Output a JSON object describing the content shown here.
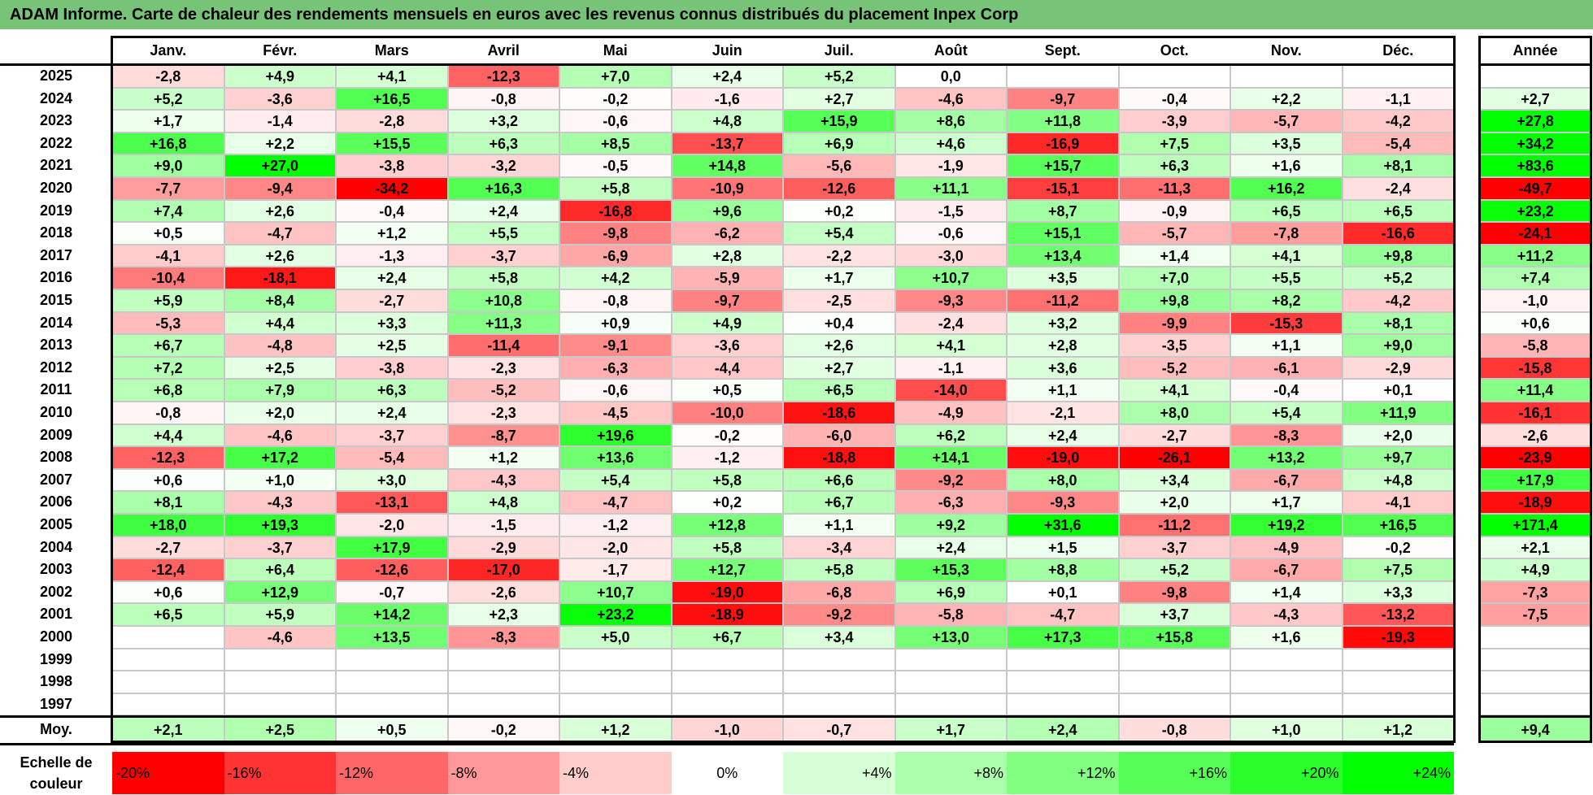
{
  "title": "ADAM Informe. Carte de chaleur des rendements mensuels en euros avec les revenus connus distribués du placement Inpex Corp",
  "months": [
    "Janv.",
    "Févr.",
    "Mars",
    "Avril",
    "Mai",
    "Juin",
    "Juil.",
    "Août",
    "Sept.",
    "Oct.",
    "Nov.",
    "Déc."
  ],
  "year_header": "Année",
  "avg_label": "Moy.",
  "scale_label": "Echelle de couleur",
  "colors": {
    "red": "#ff0000",
    "green": "#00ff00",
    "white": "#ffffff"
  },
  "chart_data": {
    "type": "heatmap",
    "title": "ADAM Informe. Carte de chaleur des rendements mensuels en euros avec les revenus connus distribués du placement Inpex Corp",
    "x_categories": [
      "Janv.",
      "Févr.",
      "Mars",
      "Avril",
      "Mai",
      "Juin",
      "Juil.",
      "Août",
      "Sept.",
      "Oct.",
      "Nov.",
      "Déc."
    ],
    "color_range": [
      -20,
      24
    ],
    "rows": [
      {
        "year": "2025",
        "values": [
          "-2,8",
          "+4,9",
          "+4,1",
          "-12,3",
          "+7,0",
          "+2,4",
          "+5,2",
          "0,0",
          "",
          "",
          "",
          ""
        ],
        "annual": ""
      },
      {
        "year": "2024",
        "values": [
          "+5,2",
          "-3,6",
          "+16,5",
          "-0,8",
          "-0,2",
          "-1,6",
          "+2,7",
          "-4,6",
          "-9,7",
          "-0,4",
          "+2,2",
          "-1,1"
        ],
        "annual": "+2,7"
      },
      {
        "year": "2023",
        "values": [
          "+1,7",
          "-1,4",
          "-2,8",
          "+3,2",
          "-0,6",
          "+4,8",
          "+15,9",
          "+8,6",
          "+11,8",
          "-3,9",
          "-5,7",
          "-4,2"
        ],
        "annual": "+27,8"
      },
      {
        "year": "2022",
        "values": [
          "+16,8",
          "+2,2",
          "+15,5",
          "+6,3",
          "+8,5",
          "-13,7",
          "+6,9",
          "+4,6",
          "-16,9",
          "+7,5",
          "+3,5",
          "-5,4"
        ],
        "annual": "+34,2"
      },
      {
        "year": "2021",
        "values": [
          "+9,0",
          "+27,0",
          "-3,8",
          "-3,2",
          "-0,5",
          "+14,8",
          "-5,6",
          "-1,9",
          "+15,7",
          "+6,3",
          "+1,6",
          "+8,1"
        ],
        "annual": "+83,6"
      },
      {
        "year": "2020",
        "values": [
          "-7,7",
          "-9,4",
          "-34,2",
          "+16,3",
          "+5,8",
          "-10,9",
          "-12,6",
          "+11,1",
          "-15,1",
          "-11,3",
          "+16,2",
          "-2,4"
        ],
        "annual": "-49,7"
      },
      {
        "year": "2019",
        "values": [
          "+7,4",
          "+2,6",
          "-0,4",
          "+2,4",
          "-16,8",
          "+9,6",
          "+0,2",
          "-1,5",
          "+8,7",
          "-0,9",
          "+6,5",
          "+6,5"
        ],
        "annual": "+23,2"
      },
      {
        "year": "2018",
        "values": [
          "+0,5",
          "-4,7",
          "+1,2",
          "+5,5",
          "-9,8",
          "-6,2",
          "+5,4",
          "-0,6",
          "+15,1",
          "-5,7",
          "-7,8",
          "-16,6"
        ],
        "annual": "-24,1"
      },
      {
        "year": "2017",
        "values": [
          "-4,1",
          "+2,6",
          "-1,3",
          "-3,7",
          "-6,9",
          "+2,8",
          "-2,2",
          "-3,0",
          "+13,4",
          "+1,4",
          "+4,1",
          "+9,8"
        ],
        "annual": "+11,2"
      },
      {
        "year": "2016",
        "values": [
          "-10,4",
          "-18,1",
          "+2,4",
          "+5,8",
          "+4,2",
          "-5,9",
          "+1,7",
          "+10,7",
          "+3,5",
          "+7,0",
          "+5,5",
          "+5,2"
        ],
        "annual": "+7,4"
      },
      {
        "year": "2015",
        "values": [
          "+5,9",
          "+8,4",
          "-2,7",
          "+10,8",
          "-0,8",
          "-9,7",
          "-2,5",
          "-9,3",
          "-11,2",
          "+9,8",
          "+8,2",
          "-4,2"
        ],
        "annual": "-1,0"
      },
      {
        "year": "2014",
        "values": [
          "-5,3",
          "+4,4",
          "+3,3",
          "+11,3",
          "+0,9",
          "+4,9",
          "+0,4",
          "-2,4",
          "+3,2",
          "-9,9",
          "-15,3",
          "+8,1"
        ],
        "annual": "+0,6"
      },
      {
        "year": "2013",
        "values": [
          "+6,7",
          "-4,8",
          "+2,5",
          "-11,4",
          "-9,1",
          "-3,6",
          "+2,6",
          "+4,1",
          "+2,8",
          "-3,5",
          "+1,1",
          "+9,0"
        ],
        "annual": "-5,8"
      },
      {
        "year": "2012",
        "values": [
          "+7,2",
          "+2,5",
          "-3,8",
          "-2,3",
          "-6,3",
          "-4,4",
          "+2,7",
          "-1,1",
          "+3,6",
          "-5,2",
          "-6,1",
          "-2,9"
        ],
        "annual": "-15,8"
      },
      {
        "year": "2011",
        "values": [
          "+6,8",
          "+7,9",
          "+6,3",
          "-5,2",
          "-0,6",
          "+0,5",
          "+6,5",
          "-14,0",
          "+1,1",
          "+4,1",
          "-0,4",
          "+0,1"
        ],
        "annual": "+11,4"
      },
      {
        "year": "2010",
        "values": [
          "-0,8",
          "+2,0",
          "+2,4",
          "-2,3",
          "-4,5",
          "-10,0",
          "-18,6",
          "-4,9",
          "-2,1",
          "+8,0",
          "+5,4",
          "+11,9"
        ],
        "annual": "-16,1"
      },
      {
        "year": "2009",
        "values": [
          "+4,4",
          "-4,6",
          "-3,7",
          "-8,7",
          "+19,6",
          "-0,2",
          "-6,0",
          "+6,2",
          "+2,4",
          "-2,7",
          "-8,3",
          "+2,0"
        ],
        "annual": "-2,6"
      },
      {
        "year": "2008",
        "values": [
          "-12,3",
          "+17,2",
          "-5,4",
          "+1,2",
          "+13,6",
          "-1,2",
          "-18,8",
          "+14,1",
          "-19,0",
          "-26,1",
          "+13,2",
          "+9,7"
        ],
        "annual": "-23,9"
      },
      {
        "year": "2007",
        "values": [
          "+0,6",
          "+1,0",
          "+3,0",
          "-4,3",
          "+5,4",
          "+5,8",
          "+6,6",
          "-9,2",
          "+8,0",
          "+3,4",
          "-6,7",
          "+4,8"
        ],
        "annual": "+17,9"
      },
      {
        "year": "2006",
        "values": [
          "+8,1",
          "-4,3",
          "-13,1",
          "+4,8",
          "-4,7",
          "+0,2",
          "+6,7",
          "-6,3",
          "-9,3",
          "+2,0",
          "+1,7",
          "-4,1"
        ],
        "annual": "-18,9"
      },
      {
        "year": "2005",
        "values": [
          "+18,0",
          "+19,3",
          "-2,0",
          "-1,5",
          "-1,2",
          "+12,8",
          "+1,1",
          "+9,2",
          "+31,6",
          "-11,2",
          "+19,2",
          "+16,5"
        ],
        "annual": "+171,4"
      },
      {
        "year": "2004",
        "values": [
          "-2,7",
          "-3,7",
          "+17,9",
          "-2,9",
          "-2,0",
          "+5,8",
          "-3,4",
          "+2,4",
          "+1,5",
          "-3,7",
          "-4,9",
          "-0,2"
        ],
        "annual": "+2,1"
      },
      {
        "year": "2003",
        "values": [
          "-12,4",
          "+6,4",
          "-12,6",
          "-17,0",
          "-1,7",
          "+12,7",
          "+5,8",
          "+15,3",
          "+8,8",
          "+5,2",
          "-6,7",
          "+7,5"
        ],
        "annual": "+4,9"
      },
      {
        "year": "2002",
        "values": [
          "+0,6",
          "+12,9",
          "-0,7",
          "-2,6",
          "+10,7",
          "-19,0",
          "-6,8",
          "+6,9",
          "+0,1",
          "-9,8",
          "+1,4",
          "+3,3"
        ],
        "annual": "-7,3"
      },
      {
        "year": "2001",
        "values": [
          "+6,5",
          "+5,9",
          "+14,2",
          "+2,3",
          "+23,2",
          "-18,9",
          "-9,2",
          "-5,8",
          "-4,7",
          "+3,7",
          "-4,3",
          "-13,2"
        ],
        "annual": "-7,5"
      },
      {
        "year": "2000",
        "values": [
          "",
          "-4,6",
          "+13,5",
          "-8,3",
          "+5,0",
          "+6,7",
          "+3,4",
          "+13,0",
          "+17,3",
          "+15,8",
          "+1,6",
          "-19,3"
        ],
        "annual": ""
      },
      {
        "year": "1999",
        "values": [
          "",
          "",
          "",
          "",
          "",
          "",
          "",
          "",
          "",
          "",
          "",
          ""
        ],
        "annual": ""
      },
      {
        "year": "1998",
        "values": [
          "",
          "",
          "",
          "",
          "",
          "",
          "",
          "",
          "",
          "",
          "",
          ""
        ],
        "annual": ""
      },
      {
        "year": "1997",
        "values": [
          "",
          "",
          "",
          "",
          "",
          "",
          "",
          "",
          "",
          "",
          "",
          ""
        ],
        "annual": ""
      }
    ],
    "average": {
      "values": [
        "+2,1",
        "+2,5",
        "+0,5",
        "-0,2",
        "+1,2",
        "-1,0",
        "-0,7",
        "+1,7",
        "+2,4",
        "-0,8",
        "+1,0",
        "+1,2"
      ],
      "annual": "+9,4"
    },
    "scale": [
      "-20%",
      "-16%",
      "-12%",
      "-8%",
      "-4%",
      "0%",
      "+4%",
      "+8%",
      "+12%",
      "+16%",
      "+20%",
      "+24%"
    ]
  }
}
